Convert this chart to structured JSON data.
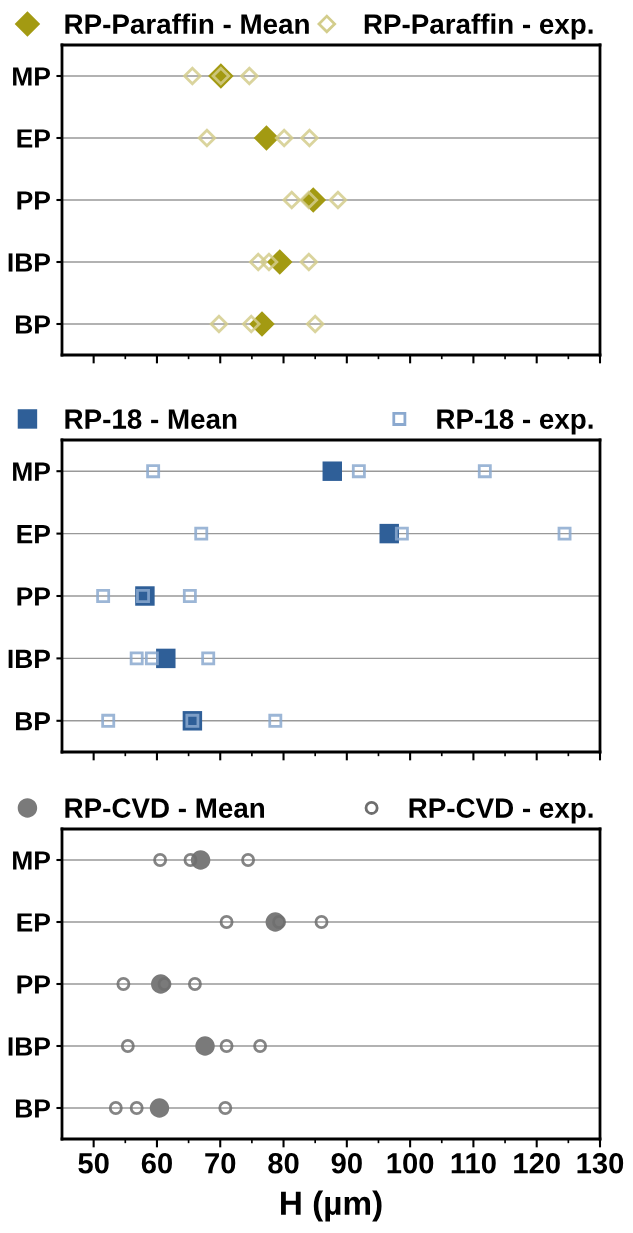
{
  "chart_data": [
    {
      "type": "scatter",
      "orientation": "horizontal",
      "categories": [
        "MP",
        "EP",
        "PP",
        "IBP",
        "BP"
      ],
      "xlim": [
        45,
        130
      ],
      "xticks": [
        {
          "value": 50,
          "label": null
        },
        {
          "value": 60,
          "label": null
        },
        {
          "value": 70,
          "label": null
        },
        {
          "value": 80,
          "label": null
        },
        {
          "value": 90,
          "label": null
        },
        {
          "value": 100,
          "label": null
        },
        {
          "value": 110,
          "label": null
        },
        {
          "value": 120,
          "label": null
        },
        {
          "value": 130,
          "label": null
        }
      ],
      "tick_labels": "y",
      "grid": "y",
      "legend": "top",
      "marker": "diamond",
      "series": [
        {
          "name": "RP-Paraffin - Mean",
          "color": "#a39a12",
          "values": [
            70.1,
            77.3,
            84.7,
            79.4,
            76.6
          ]
        },
        {
          "name": "RP-Paraffin - exp.",
          "color": "#d3cd8c",
          "values": [
            65.6,
            67.9,
            81.3,
            76.0,
            69.8
          ]
        },
        {
          "color": "#d3cd8c",
          "values": [
            70.1,
            80.1,
            84.0,
            77.7,
            74.9
          ]
        },
        {
          "color": "#d3cd8c",
          "values": [
            74.6,
            84.1,
            88.6,
            84.0,
            85.0
          ]
        }
      ]
    },
    {
      "type": "scatter",
      "orientation": "horizontal",
      "categories": [
        "MP",
        "EP",
        "PP",
        "IBP",
        "BP"
      ],
      "xlim": [
        45,
        130
      ],
      "xticks": [
        {
          "value": 50,
          "label": null
        },
        {
          "value": 60,
          "label": null
        },
        {
          "value": 70,
          "label": null
        },
        {
          "value": 80,
          "label": null
        },
        {
          "value": 90,
          "label": null
        },
        {
          "value": 100,
          "label": null
        },
        {
          "value": 110,
          "label": null
        },
        {
          "value": 120,
          "label": null
        },
        {
          "value": 130,
          "label": null
        }
      ],
      "tick_labels": "y",
      "grid": "y",
      "legend": "top",
      "marker": "square",
      "series": [
        {
          "name": "RP-18 - Mean",
          "color": "#2f5f98",
          "values": [
            87.7,
            96.7,
            58.1,
            61.4,
            65.6
          ]
        },
        {
          "name": "RP-18 - exp.",
          "color": "#8ba9cf",
          "values": [
            59.4,
            67.0,
            51.5,
            56.8,
            52.3
          ]
        },
        {
          "color": "#8ba9cf",
          "values": [
            91.9,
            98.7,
            57.8,
            59.2,
            65.6
          ]
        },
        {
          "color": "#8ba9cf",
          "values": [
            111.8,
            124.4,
            65.2,
            68.1,
            78.7
          ]
        }
      ]
    },
    {
      "type": "scatter",
      "orientation": "horizontal",
      "categories": [
        "MP",
        "EP",
        "PP",
        "IBP",
        "BP"
      ],
      "xlabel": "H (µm)",
      "xlim": [
        45,
        130
      ],
      "xticks": [
        50,
        60,
        70,
        80,
        90,
        100,
        110,
        120,
        130
      ],
      "grid": "y",
      "legend": "top",
      "marker": "circle",
      "series": [
        {
          "name": "RP-CVD - Mean",
          "color": "#7a7a7a",
          "values": [
            66.9,
            78.7,
            60.6,
            67.6,
            60.4
          ]
        },
        {
          "name": "RP-CVD - exp.",
          "color": "#6e6e6e",
          "values": [
            60.5,
            71.0,
            54.7,
            55.4,
            53.5
          ]
        },
        {
          "color": "#6e6e6e",
          "values": [
            65.3,
            79.3,
            61.2,
            71.0,
            56.8
          ]
        },
        {
          "color": "#6e6e6e",
          "values": [
            74.4,
            86.0,
            66.0,
            76.3,
            70.8
          ]
        }
      ]
    }
  ]
}
